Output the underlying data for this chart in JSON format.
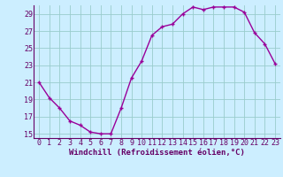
{
  "x": [
    0,
    1,
    2,
    3,
    4,
    5,
    6,
    7,
    8,
    9,
    10,
    11,
    12,
    13,
    14,
    15,
    16,
    17,
    18,
    19,
    20,
    21,
    22,
    23
  ],
  "y": [
    21,
    19.2,
    18.0,
    16.5,
    16.0,
    15.2,
    15.0,
    15.0,
    18.0,
    21.5,
    23.5,
    26.5,
    27.5,
    27.8,
    29.0,
    29.8,
    29.5,
    29.8,
    29.8,
    29.8,
    29.2,
    26.8,
    25.5,
    23.2
  ],
  "line_color": "#990099",
  "marker": "+",
  "marker_size": 3,
  "bg_color": "#cceeff",
  "grid_color": "#99cccc",
  "xlabel": "Windchill (Refroidissement éolien,°C)",
  "xlabel_fontsize": 6.5,
  "ylim": [
    14.5,
    30.0
  ],
  "xlim": [
    -0.5,
    23.5
  ],
  "yticks": [
    15,
    17,
    19,
    21,
    23,
    25,
    27,
    29
  ],
  "xticks": [
    0,
    1,
    2,
    3,
    4,
    5,
    6,
    7,
    8,
    9,
    10,
    11,
    12,
    13,
    14,
    15,
    16,
    17,
    18,
    19,
    20,
    21,
    22,
    23
  ],
  "tick_label_fontsize": 6.0,
  "axis_color": "#660066",
  "line_width": 1.0,
  "marker_edge_width": 1.0
}
